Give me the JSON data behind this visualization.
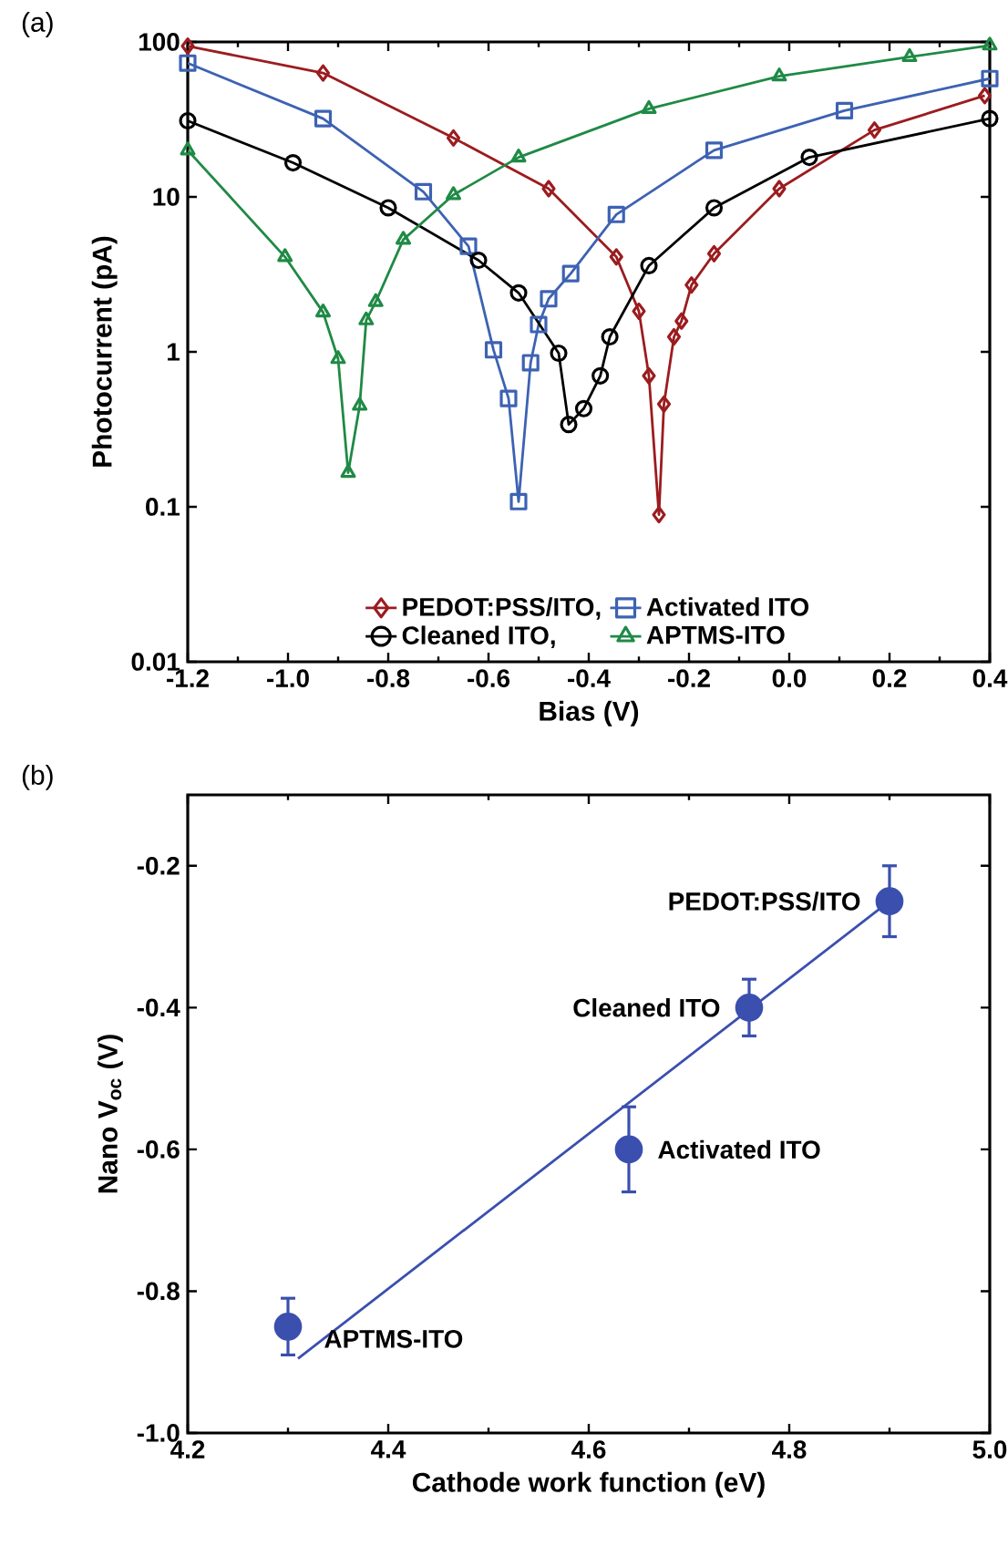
{
  "chart_data": [
    {
      "type": "line",
      "title": "(a)",
      "xlabel": "Bias (V)",
      "ylabel": "Photocurrent (pA)",
      "log": "y",
      "legend": "bottom",
      "line_style": "solid",
      "xlim": [
        -1.2,
        0.4
      ],
      "ylim": [
        0.01,
        100
      ],
      "xticks": [
        -1.2,
        {
          "value": -1.0,
          "label": "-1.0"
        },
        -0.8,
        -0.6,
        -0.4,
        -0.2,
        {
          "value": 0,
          "label": "0.0"
        },
        0.2,
        0.4
      ],
      "yticks": [
        0.01,
        0.1,
        1,
        10,
        100
      ],
      "series": [
        {
          "name": "PEDOT:PSS/ITO,",
          "color": "#9b1c1f",
          "marker": "diamond",
          "x": [
            -1.2,
            -0.93,
            -0.67,
            -0.48,
            -0.345,
            -0.3,
            -0.28,
            -0.26,
            -0.25,
            -0.23,
            -0.215,
            -0.195,
            -0.15,
            -0.02,
            0.17,
            0.39
          ],
          "values": [
            94,
            63,
            24,
            11.3,
            4.1,
            1.83,
            0.7,
            0.089,
            0.46,
            1.25,
            1.58,
            2.7,
            4.3,
            11.3,
            27,
            45
          ]
        },
        {
          "name": "Activated ITO",
          "color": "#3d62b3",
          "marker": "square",
          "x": [
            -1.2,
            -0.93,
            -0.73,
            -0.64,
            -0.59,
            -0.56,
            -0.54,
            -0.516,
            -0.5,
            -0.48,
            -0.436,
            -0.345,
            -0.15,
            0.11,
            0.4
          ],
          "values": [
            73,
            32,
            10.8,
            4.8,
            1.03,
            0.5,
            0.108,
            0.85,
            1.5,
            2.2,
            3.2,
            7.7,
            20,
            36,
            58
          ]
        },
        {
          "name": "Cleaned ITO,",
          "color": "#000000",
          "marker": "circle",
          "x": [
            -1.2,
            -0.99,
            -0.8,
            -0.62,
            -0.54,
            -0.46,
            -0.44,
            -0.41,
            -0.377,
            -0.358,
            -0.28,
            -0.15,
            0.04,
            0.4
          ],
          "values": [
            31,
            16.6,
            8.5,
            3.9,
            2.4,
            0.98,
            0.34,
            0.43,
            0.7,
            1.25,
            3.6,
            8.5,
            18,
            32
          ]
        },
        {
          "name": "APTMS-ITO",
          "color": "#1f8a45",
          "marker": "triangle",
          "x": [
            -1.2,
            -1.006,
            -0.93,
            -0.9,
            -0.88,
            -0.857,
            -0.844,
            -0.825,
            -0.77,
            -0.67,
            -0.54,
            -0.28,
            -0.02,
            0.24,
            0.4
          ],
          "values": [
            20,
            4.1,
            1.8,
            0.9,
            0.166,
            0.45,
            1.6,
            2.1,
            5.3,
            10.3,
            18,
            37,
            60,
            80,
            95
          ]
        }
      ]
    },
    {
      "type": "scatter",
      "title": "(b)",
      "xlabel": "Cathode work function (eV)",
      "ylabel": "Nano V$_{oc}$ (V)",
      "marker": "circle",
      "xlim": [
        4.2,
        5.0
      ],
      "ylim": [
        -1.0,
        -0.1
      ],
      "xticks": [
        4.2,
        4.4,
        4.6,
        4.8,
        {
          "value": 5.0,
          "label": "5.0"
        }
      ],
      "yticks": [
        {
          "value": -1.0,
          "label": "-1.0"
        },
        -0.8,
        -0.6,
        -0.4,
        -0.2
      ],
      "series": [
        {
          "color": "#3a4fae",
          "x": [
            4.3,
            4.64,
            4.76,
            4.9
          ],
          "values": [
            -0.85,
            -0.6,
            -0.4,
            -0.25
          ],
          "errors": [
            0.04,
            0.06,
            0.04,
            0.05
          ]
        },
        {
          "type": "line",
          "color": "#3a4fae",
          "marker": "none",
          "x": [
            4.31,
            4.9
          ],
          "values": [
            -0.895,
            -0.25
          ]
        }
      ],
      "annotations": [
        {
          "text": "PEDOT:PSS/ITO",
          "x": 4.9,
          "y": -0.25
        },
        {
          "text": "Cleaned ITO",
          "x": 4.76,
          "y": -0.4
        },
        {
          "text": "Activated ITO",
          "x": 4.64,
          "y": -0.6
        },
        {
          "text": "APTMS-ITO",
          "x": 4.3,
          "y": -0.85
        }
      ]
    }
  ]
}
